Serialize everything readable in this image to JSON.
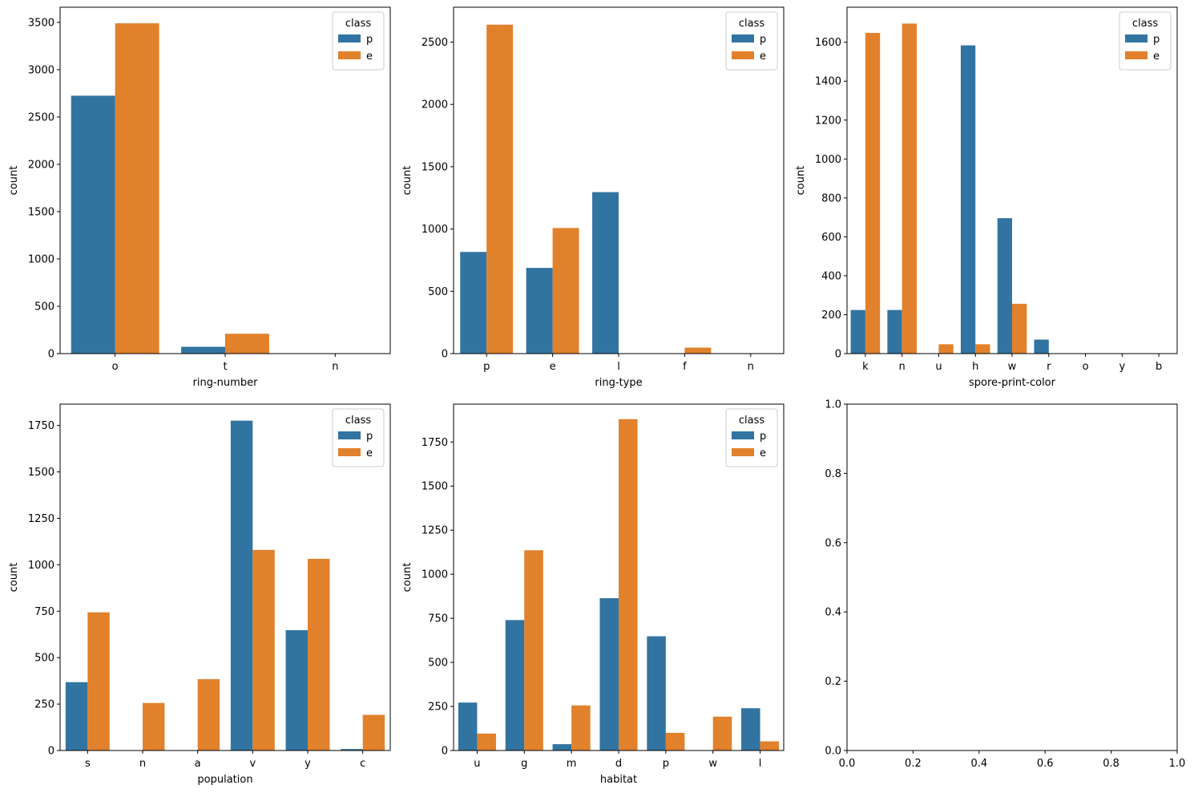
{
  "series_colors": {
    "p": "#3274a1",
    "e": "#e1812c"
  },
  "chart_data": [
    {
      "type": "bar",
      "xlabel": "ring-number",
      "ylabel": "count",
      "ylim": [
        0,
        3660
      ],
      "yticks": [
        0,
        500,
        1000,
        1500,
        2000,
        2500,
        3000,
        3500
      ],
      "categories": [
        "o",
        "t",
        "n"
      ],
      "legend": {
        "title": "class",
        "position": "top-right"
      },
      "series": [
        {
          "name": "p",
          "values": [
            2725,
            72,
            0
          ]
        },
        {
          "name": "e",
          "values": [
            3490,
            210,
            0
          ]
        }
      ]
    },
    {
      "type": "bar",
      "xlabel": "ring-type",
      "ylabel": "count",
      "ylim": [
        0,
        2780
      ],
      "yticks": [
        0,
        500,
        1000,
        1500,
        2000,
        2500
      ],
      "categories": [
        "p",
        "e",
        "l",
        "f",
        "n"
      ],
      "legend": {
        "title": "class",
        "position": "top-right"
      },
      "series": [
        {
          "name": "p",
          "values": [
            816,
            688,
            1296,
            0,
            0
          ]
        },
        {
          "name": "e",
          "values": [
            2640,
            1008,
            0,
            48,
            0
          ]
        }
      ]
    },
    {
      "type": "bar",
      "xlabel": "spore-print-color",
      "ylabel": "count",
      "ylim": [
        0,
        1780
      ],
      "yticks": [
        0,
        200,
        400,
        600,
        800,
        1000,
        1200,
        1400,
        1600
      ],
      "categories": [
        "k",
        "n",
        "u",
        "h",
        "w",
        "r",
        "o",
        "y",
        "b"
      ],
      "legend": {
        "title": "class",
        "position": "top-right"
      },
      "series": [
        {
          "name": "p",
          "values": [
            224,
            224,
            0,
            1584,
            696,
            72,
            0,
            0,
            0
          ]
        },
        {
          "name": "e",
          "values": [
            1648,
            1696,
            48,
            48,
            256,
            0,
            0,
            0,
            0
          ]
        }
      ]
    },
    {
      "type": "bar",
      "xlabel": "population",
      "ylabel": "count",
      "ylim": [
        0,
        1865
      ],
      "yticks": [
        0,
        250,
        500,
        750,
        1000,
        1250,
        1500,
        1750
      ],
      "categories": [
        "s",
        "n",
        "a",
        "v",
        "y",
        "c"
      ],
      "legend": {
        "title": "class",
        "position": "top-right"
      },
      "series": [
        {
          "name": "p",
          "values": [
            368,
            0,
            0,
            1776,
            648,
            8
          ]
        },
        {
          "name": "e",
          "values": [
            744,
            256,
            384,
            1080,
            1032,
            192
          ]
        }
      ]
    },
    {
      "type": "bar",
      "xlabel": "habitat",
      "ylabel": "count",
      "ylim": [
        0,
        1965
      ],
      "yticks": [
        0,
        250,
        500,
        750,
        1000,
        1250,
        1500,
        1750
      ],
      "categories": [
        "u",
        "g",
        "m",
        "d",
        "p",
        "w",
        "l"
      ],
      "legend": {
        "title": "class",
        "position": "top-right"
      },
      "series": [
        {
          "name": "p",
          "values": [
            272,
            740,
            36,
            864,
            648,
            0,
            240
          ]
        },
        {
          "name": "e",
          "values": [
            96,
            1136,
            256,
            1880,
            100,
            192,
            52
          ]
        }
      ]
    },
    {
      "type": "scatter",
      "xlabel": "",
      "ylabel": "",
      "xlim": [
        0,
        1
      ],
      "ylim": [
        0,
        1
      ],
      "xticks": [
        "0.0",
        "0.2",
        "0.4",
        "0.6",
        "0.8",
        "1.0"
      ],
      "yticks": [
        "0.0",
        "0.2",
        "0.4",
        "0.6",
        "0.8",
        "1.0"
      ],
      "series": []
    }
  ]
}
